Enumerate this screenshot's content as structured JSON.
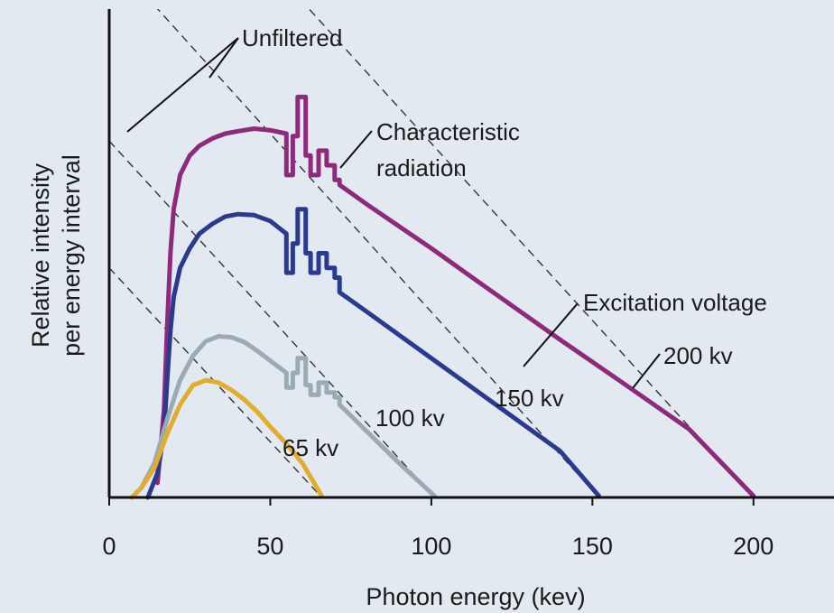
{
  "chart_data": {
    "type": "line",
    "title": "",
    "xlabel": "Photon energy (kev)",
    "ylabel": [
      "Relative intensity",
      "per energy interval"
    ],
    "xlim": [
      0,
      225
    ],
    "ylim": [
      0,
      1
    ],
    "x_ticks": [
      0,
      50,
      100,
      150,
      200
    ],
    "grid": false,
    "colors": {
      "200 kv": "#8e2a7c",
      "150 kv": "#2a3a8e",
      "100 kv": "#9aabb4",
      "65 kv": "#e2ad2c",
      "unfiltered": "#333333",
      "axis": "#111111",
      "background": "#e3e9f1"
    },
    "series": [
      {
        "name": "200 kv",
        "x": [
          15,
          17,
          18,
          19,
          20,
          22,
          25,
          28,
          32,
          36,
          40,
          45,
          50,
          55,
          55,
          57,
          57,
          58.5,
          58.5,
          61,
          61,
          62.5,
          62.5,
          65,
          65,
          67.5,
          67.5,
          70,
          70,
          71.5,
          71.5,
          80,
          100,
          120,
          140,
          160,
          180,
          200
        ],
        "y": [
          0.03,
          0.18,
          0.35,
          0.5,
          0.59,
          0.66,
          0.7,
          0.72,
          0.735,
          0.745,
          0.75,
          0.755,
          0.752,
          0.745,
          0.66,
          0.66,
          0.74,
          0.74,
          0.82,
          0.82,
          0.7,
          0.7,
          0.66,
          0.66,
          0.71,
          0.71,
          0.68,
          0.68,
          0.65,
          0.65,
          0.64,
          0.6,
          0.51,
          0.416,
          0.323,
          0.232,
          0.14,
          0.003
        ]
      },
      {
        "name": "150 kv",
        "x": [
          12,
          15,
          17,
          18,
          19,
          20,
          22,
          25,
          28,
          32,
          36,
          40,
          45,
          50,
          55,
          55,
          57,
          57,
          58.5,
          58.5,
          61,
          61,
          62.5,
          62.5,
          65,
          65,
          67.5,
          67.5,
          70,
          70,
          71.5,
          71.5,
          80,
          100,
          120,
          140,
          152
        ],
        "y": [
          0,
          0.05,
          0.13,
          0.24,
          0.34,
          0.41,
          0.47,
          0.51,
          0.54,
          0.56,
          0.575,
          0.58,
          0.578,
          0.566,
          0.54,
          0.46,
          0.46,
          0.52,
          0.52,
          0.59,
          0.59,
          0.5,
          0.5,
          0.46,
          0.46,
          0.5,
          0.5,
          0.47,
          0.47,
          0.45,
          0.45,
          0.42,
          0.38,
          0.285,
          0.19,
          0.095,
          0.003
        ]
      },
      {
        "name": "100 kv",
        "x": [
          7,
          10,
          14,
          18,
          22,
          26,
          30,
          34,
          38,
          42,
          46,
          50,
          55,
          55,
          57,
          57,
          58.5,
          58.5,
          61,
          61,
          62.5,
          62.5,
          65,
          65,
          67.5,
          67.5,
          70,
          70,
          71.5,
          71.5,
          80,
          90,
          101
        ],
        "y": [
          0,
          0.02,
          0.07,
          0.16,
          0.24,
          0.29,
          0.32,
          0.33,
          0.328,
          0.318,
          0.3,
          0.28,
          0.255,
          0.225,
          0.225,
          0.255,
          0.255,
          0.285,
          0.285,
          0.23,
          0.23,
          0.21,
          0.21,
          0.235,
          0.235,
          0.215,
          0.215,
          0.205,
          0.205,
          0.19,
          0.135,
          0.07,
          0.003
        ]
      },
      {
        "name": "65 kv",
        "x": [
          7,
          10,
          14,
          18,
          22,
          26,
          30,
          34,
          38,
          42,
          46,
          50,
          55,
          60,
          66
        ],
        "y": [
          0,
          0.02,
          0.06,
          0.13,
          0.19,
          0.23,
          0.24,
          0.235,
          0.22,
          0.2,
          0.175,
          0.145,
          0.11,
          0.07,
          0.003
        ]
      }
    ],
    "unfiltered_lines": [
      {
        "from": [
          0,
          1.45
        ],
        "to": [
          200,
          0
        ]
      },
      {
        "from": [
          0,
          1.11
        ],
        "to": [
          152,
          0
        ]
      },
      {
        "from": [
          0,
          0.73
        ],
        "to": [
          101,
          0
        ]
      },
      {
        "from": [
          0,
          0.47
        ],
        "to": [
          66,
          0
        ]
      }
    ],
    "annotations": {
      "unfiltered": "Unfiltered",
      "characteristic_1": "Characteristic",
      "characteristic_2": "radiation",
      "excitation_voltage": "Excitation voltage",
      "label_200": "200 kv",
      "label_150": "150 kv",
      "label_100": "100 kv",
      "label_65": "65 kv"
    }
  }
}
